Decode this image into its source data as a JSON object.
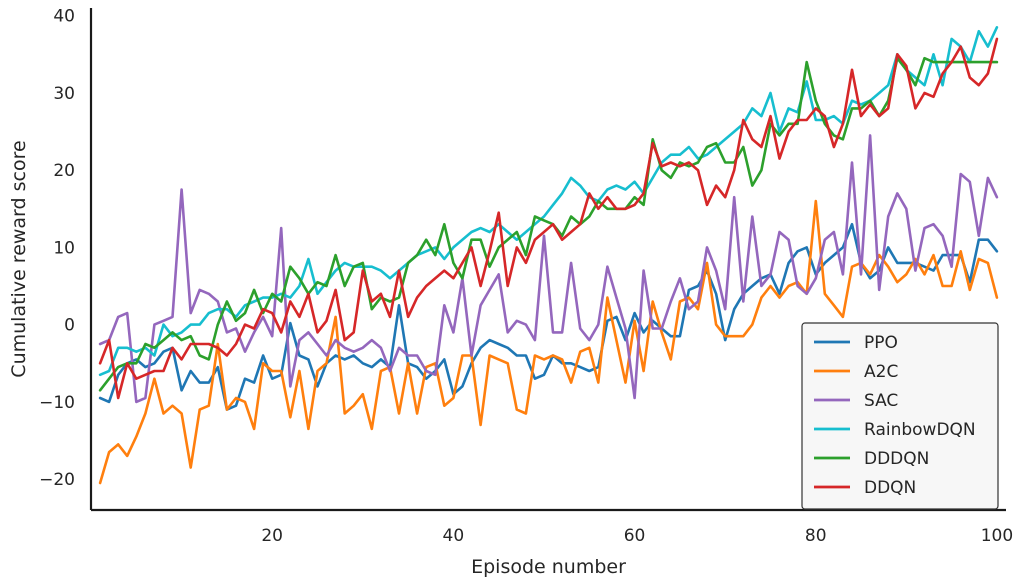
{
  "chart_data": {
    "type": "line",
    "xlabel": "Episode number",
    "ylabel": "Cumulative reward score",
    "xlim": [
      0,
      101
    ],
    "ylim": [
      -24,
      41
    ],
    "xticks": [
      20,
      40,
      60,
      80,
      100
    ],
    "yticks": [
      -20,
      -10,
      0,
      10,
      20,
      30,
      40
    ],
    "legend_position": "bottom-right",
    "grid": false,
    "series": [
      {
        "name": "PPO",
        "color": "#1f77b4",
        "y": [
          -9.5,
          -10,
          -6.5,
          -5,
          -4.5,
          -5.5,
          -5,
          -3.5,
          -3,
          -8.5,
          -6,
          -7.5,
          -7.5,
          -5.5,
          -11,
          -10.5,
          -7,
          -7.5,
          -4,
          -7,
          -6.5,
          0.2,
          -4,
          -4.5,
          -8,
          -5,
          -4,
          -4.5,
          -4,
          -5,
          -5.5,
          -4.5,
          -5.5,
          2.5,
          -5,
          -5.5,
          -7,
          -6,
          -4.5,
          -9,
          -8,
          -5,
          -3,
          -2,
          -2.5,
          -3,
          -4,
          -4,
          -7,
          -6.5,
          -4,
          -5,
          -5,
          -5.5,
          -6,
          -5.5,
          0.5,
          1,
          -2,
          1.5,
          -1,
          0.5,
          -0.5,
          -1.5,
          -1.5,
          4.5,
          5,
          7,
          4,
          -2,
          2,
          4,
          5,
          6,
          6.5,
          4,
          8,
          9.5,
          10,
          6.5,
          8,
          9,
          10,
          13,
          8,
          6,
          7,
          10,
          8,
          8,
          8,
          7.5,
          7,
          9,
          9,
          9,
          5.5,
          11,
          11,
          9.5
        ]
      },
      {
        "name": "A2C",
        "color": "#ff7f0e",
        "y": [
          -20.5,
          -16.5,
          -15.5,
          -17,
          -14.5,
          -11.5,
          -7,
          -11.5,
          -10.5,
          -11.5,
          -18.5,
          -11,
          -10.5,
          -2.5,
          -11,
          -9.5,
          -10,
          -13.5,
          -5,
          -6,
          -6,
          -12,
          -6,
          -13.5,
          -6,
          -5,
          1,
          -11.5,
          -10.5,
          -9,
          -13.5,
          -6,
          -5.5,
          -11.5,
          -5,
          -11.5,
          -5.5,
          -5,
          -10.5,
          -9.5,
          -4,
          -4,
          -13,
          -4,
          -4.5,
          -5,
          -11,
          -11.5,
          -4,
          -4.5,
          -4,
          -4.5,
          -7.5,
          -3.5,
          -3,
          -7.5,
          3.5,
          -2,
          -7.5,
          0.5,
          -6,
          3,
          -1,
          -4.5,
          3,
          3.5,
          2,
          8,
          0,
          -1.5,
          -1.5,
          -1.5,
          0,
          3.5,
          5,
          3.5,
          5,
          5.5,
          4,
          16,
          4,
          2.5,
          1,
          7.5,
          8,
          6.5,
          9,
          7.5,
          5.5,
          6.5,
          8.5,
          6.5,
          9,
          5,
          5,
          9.5,
          4.5,
          8.5,
          8,
          3.5
        ]
      },
      {
        "name": "SAC",
        "color": "#9467bd",
        "y": [
          -2.5,
          -2,
          1,
          1.5,
          -10,
          -9.5,
          0,
          0.5,
          1,
          17.5,
          1.5,
          4.5,
          4,
          3,
          -1,
          -0.5,
          -3.5,
          -1,
          1,
          -1.5,
          12.5,
          -8,
          -2,
          -1,
          -2.5,
          -4,
          -2,
          -3,
          -3.5,
          -3,
          -2,
          -3,
          -6,
          -3,
          -4,
          -4,
          -6,
          -6.5,
          2.5,
          -1,
          6,
          -4,
          2.5,
          4.5,
          6.5,
          -1,
          0.5,
          0,
          -2,
          11.5,
          -1,
          -1,
          8,
          -0.5,
          -2,
          0,
          7.5,
          3.5,
          -0.5,
          -9.5,
          7,
          -0.5,
          -0.5,
          3,
          6,
          2,
          3,
          10,
          7,
          2,
          16.5,
          3,
          14,
          5,
          6.5,
          12,
          11,
          5,
          4,
          6,
          11,
          12,
          6.5,
          21,
          6.5,
          24.5,
          4.5,
          14,
          17,
          15,
          7,
          12.5,
          13,
          11.5,
          7.5,
          19.5,
          18.5,
          11.5,
          19,
          16.5
        ]
      },
      {
        "name": "RainbowDQN",
        "color": "#17becf",
        "y": [
          -6.5,
          -6,
          -3,
          -3,
          -3.5,
          -3,
          -4,
          0,
          -1.5,
          -1,
          0,
          0,
          1.5,
          2,
          2,
          1,
          2.5,
          3,
          3.5,
          3.5,
          4,
          3.5,
          5,
          8.5,
          4,
          5.5,
          7,
          8,
          7.5,
          7.5,
          7.5,
          7,
          6,
          7,
          8,
          9,
          9.5,
          10,
          8.5,
          10,
          11,
          12,
          12.5,
          12,
          13,
          12,
          11,
          12,
          13,
          14,
          15.5,
          17,
          19,
          18,
          16.5,
          16,
          17.5,
          18,
          17.5,
          18.5,
          17,
          19,
          21,
          22,
          22,
          23,
          21.5,
          22,
          23,
          24,
          25,
          26,
          28,
          27,
          30,
          25,
          28,
          27.5,
          31.5,
          26.5,
          26.5,
          27,
          26,
          29,
          28.5,
          29,
          30,
          31,
          35,
          33,
          32,
          31,
          35,
          31,
          37,
          36,
          34,
          38,
          36,
          38.5
        ]
      },
      {
        "name": "DDDQN",
        "color": "#2ca02c",
        "y": [
          -8.5,
          -7,
          -5.5,
          -5,
          -5,
          -2.5,
          -3,
          -2,
          -1,
          -2,
          -1.5,
          -4,
          -4.5,
          0,
          3,
          0.5,
          1.5,
          4.5,
          1.5,
          4,
          3,
          7.5,
          6,
          4,
          5.5,
          5,
          9,
          5,
          7.5,
          8,
          2,
          3.5,
          3,
          3.5,
          8,
          9,
          11,
          9,
          13,
          8,
          6,
          11,
          11,
          7.5,
          10,
          11,
          12,
          9,
          14,
          13.5,
          13,
          11.5,
          14,
          13,
          14,
          16,
          15,
          15,
          15,
          16.5,
          15.5,
          24,
          20,
          19,
          21,
          20.5,
          21,
          23,
          23.5,
          21,
          21,
          23,
          18,
          20,
          26,
          24.5,
          26,
          26,
          34,
          29,
          26,
          24.5,
          24,
          28,
          28,
          29,
          27,
          29,
          34.5,
          33,
          31,
          34.5,
          34,
          34,
          34,
          34,
          34,
          34,
          34,
          34
        ]
      },
      {
        "name": "DDQN",
        "color": "#d62728",
        "y": [
          -5,
          -2,
          -9.5,
          -5,
          -7,
          -6.5,
          -6,
          -6,
          -3,
          -4.5,
          -2.5,
          -2.5,
          -2.5,
          -3,
          -4,
          -2.5,
          0,
          -0.5,
          2,
          1.5,
          -1,
          3,
          1,
          4,
          -1,
          0.5,
          4.5,
          -2,
          -1,
          7,
          3,
          4,
          1,
          7,
          1,
          3.5,
          5,
          6,
          7,
          6,
          8,
          10,
          5,
          9.5,
          14.5,
          5,
          10,
          8,
          11,
          12,
          13,
          11,
          12,
          13,
          17,
          15,
          16.5,
          15,
          15,
          15.5,
          17,
          23.5,
          20.5,
          21,
          20.5,
          21,
          20,
          15.5,
          18,
          16.5,
          20,
          26.5,
          24,
          23,
          27,
          21.5,
          25,
          26.5,
          26.5,
          28,
          27,
          23,
          26,
          33,
          27,
          28.5,
          27,
          28,
          35,
          33.5,
          28,
          30,
          29.5,
          32.5,
          34,
          36,
          32,
          31,
          32.5,
          37
        ]
      }
    ]
  }
}
